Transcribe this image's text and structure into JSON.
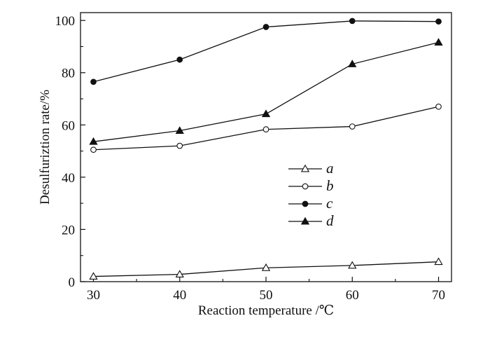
{
  "chart_data": {
    "type": "line",
    "title": "",
    "xlabel": "Reaction temperature /℃",
    "ylabel": "Desulfuriztion rate/%",
    "xlim": [
      28.5,
      71.5
    ],
    "ylim": [
      0,
      103
    ],
    "xticks": [
      30,
      40,
      50,
      60,
      70
    ],
    "yticks": [
      0,
      20,
      40,
      60,
      80,
      100
    ],
    "grid": false,
    "legend_position": "center-right",
    "x": [
      30,
      40,
      50,
      60,
      70
    ],
    "series": [
      {
        "name": "a",
        "marker": "triangle-open",
        "values": [
          2.0,
          2.8,
          5.3,
          6.2,
          7.6
        ]
      },
      {
        "name": "b",
        "marker": "circle-open",
        "values": [
          50.5,
          52.0,
          58.3,
          59.4,
          67.0
        ]
      },
      {
        "name": "c",
        "marker": "circle-filled",
        "values": [
          76.5,
          85.0,
          97.5,
          99.8,
          99.6
        ]
      },
      {
        "name": "d",
        "marker": "triangle-filled",
        "values": [
          53.6,
          57.8,
          64.2,
          83.3,
          91.6
        ]
      }
    ]
  }
}
